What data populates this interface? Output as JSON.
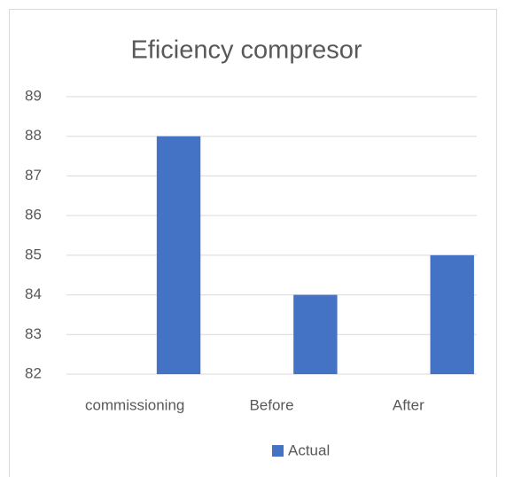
{
  "chart_data": {
    "type": "bar",
    "title": "Eficiency compresor",
    "categories": [
      "commissioning",
      "Before",
      "After"
    ],
    "series": [
      {
        "name": "Actual",
        "color": "#4472c4",
        "values": [
          88,
          84,
          85
        ]
      }
    ],
    "ylim": [
      82,
      89
    ],
    "yticks": [
      82,
      83,
      84,
      85,
      86,
      87,
      88,
      89
    ],
    "grid": true,
    "legend": "bottom"
  }
}
